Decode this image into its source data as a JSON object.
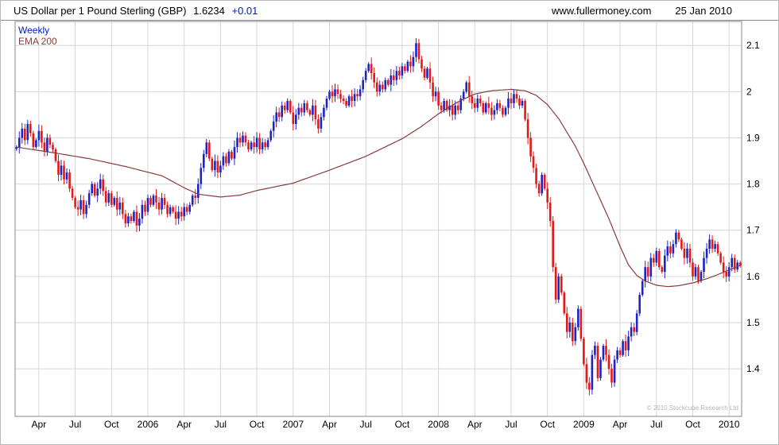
{
  "header": {
    "title": "US Dollar per 1 Pound Sterling (GBP)",
    "last_price": "1.6234",
    "change": "+0.01",
    "website": "www.fullermoney.com",
    "date": "25 Jan 2010"
  },
  "legend": {
    "timeframe": "Weekly",
    "ema": "EMA 200"
  },
  "footer": {
    "copyright": "© 2010 Stockcube Research Ltd"
  },
  "colors": {
    "up": "#1c24c8",
    "down": "#e41818",
    "ema": "#8b3a3a",
    "grid": "#d6d6d6",
    "axis": "#8a8a8a",
    "accent_blue": "#0018c8",
    "copyright_gray": "#b4b4b4"
  },
  "chart_data": {
    "type": "candlestick",
    "series_name": "US Dollar per 1 Pound Sterling (GBP)",
    "timeframe": "Weekly",
    "overlay": "EMA 200",
    "last_price": 1.6234,
    "change": 0.01,
    "ylim": [
      1.297,
      2.152
    ],
    "y_ticks": [
      "2.1",
      "2",
      "1.9",
      "1.8",
      "1.7",
      "1.6",
      "1.5",
      "1.4"
    ],
    "x_tick_labels": [
      "Apr",
      "Jul",
      "Oct",
      "2006",
      "Apr",
      "Jul",
      "Oct",
      "2007",
      "Apr",
      "Jul",
      "Oct",
      "2008",
      "Apr",
      "Jul",
      "Oct",
      "2009",
      "Apr",
      "Jul",
      "Oct",
      "2010"
    ],
    "x_tick_weeks": [
      8,
      21,
      34,
      47,
      60,
      73,
      86,
      99,
      112,
      125,
      138,
      151,
      164,
      177,
      190,
      203,
      216,
      229,
      242,
      255
    ],
    "weekly_closes": [
      1.88,
      1.9,
      1.92,
      1.895,
      1.93,
      1.91,
      1.88,
      1.895,
      1.915,
      1.89,
      1.87,
      1.9,
      1.885,
      1.875,
      1.85,
      1.82,
      1.84,
      1.81,
      1.825,
      1.79,
      1.77,
      1.75,
      1.745,
      1.765,
      1.735,
      1.755,
      1.78,
      1.8,
      1.775,
      1.79,
      1.81,
      1.785,
      1.76,
      1.78,
      1.755,
      1.77,
      1.745,
      1.76,
      1.735,
      1.715,
      1.73,
      1.72,
      1.74,
      1.71,
      1.725,
      1.755,
      1.74,
      1.77,
      1.755,
      1.775,
      1.76,
      1.745,
      1.77,
      1.755,
      1.735,
      1.75,
      1.74,
      1.725,
      1.74,
      1.73,
      1.75,
      1.74,
      1.755,
      1.775,
      1.77,
      1.8,
      1.835,
      1.865,
      1.89,
      1.855,
      1.83,
      1.85,
      1.825,
      1.84,
      1.86,
      1.845,
      1.87,
      1.855,
      1.88,
      1.9,
      1.89,
      1.905,
      1.89,
      1.875,
      1.89,
      1.88,
      1.9,
      1.875,
      1.89,
      1.88,
      1.895,
      1.915,
      1.935,
      1.955,
      1.945,
      1.97,
      1.96,
      1.98,
      1.955,
      1.93,
      1.95,
      1.965,
      1.955,
      1.975,
      1.96,
      1.95,
      1.97,
      1.94,
      1.92,
      1.945,
      1.965,
      1.985,
      2.0,
      1.99,
      2.005,
      1.995,
      1.985,
      1.98,
      1.97,
      1.99,
      1.98,
      1.995,
      1.99,
      2.005,
      2.025,
      2.045,
      2.06,
      2.04,
      2.02,
      2.0,
      2.015,
      2.005,
      2.025,
      2.015,
      2.035,
      2.025,
      2.045,
      2.035,
      2.055,
      2.045,
      2.065,
      2.055,
      2.075,
      2.105,
      2.07,
      2.05,
      2.03,
      2.05,
      2.02,
      1.99,
      2.0,
      1.97,
      1.96,
      1.98,
      1.96,
      1.97,
      1.95,
      1.97,
      1.96,
      1.985,
      2.0,
      2.02,
      1.99,
      1.975,
      1.965,
      1.985,
      1.975,
      1.955,
      1.975,
      1.965,
      1.95,
      1.96,
      1.975,
      1.965,
      1.95,
      1.965,
      1.985,
      1.975,
      1.995,
      1.985,
      1.97,
      1.98,
      1.94,
      1.9,
      1.86,
      1.835,
      1.8,
      1.78,
      1.82,
      1.79,
      1.76,
      1.72,
      1.62,
      1.55,
      1.6,
      1.565,
      1.52,
      1.48,
      1.5,
      1.46,
      1.49,
      1.53,
      1.465,
      1.41,
      1.37,
      1.355,
      1.43,
      1.45,
      1.38,
      1.42,
      1.45,
      1.43,
      1.4,
      1.37,
      1.42,
      1.44,
      1.43,
      1.46,
      1.44,
      1.47,
      1.49,
      1.48,
      1.52,
      1.56,
      1.59,
      1.62,
      1.6,
      1.64,
      1.63,
      1.655,
      1.62,
      1.61,
      1.645,
      1.665,
      1.65,
      1.67,
      1.695,
      1.68,
      1.66,
      1.64,
      1.66,
      1.63,
      1.6,
      1.62,
      1.59,
      1.61,
      1.64,
      1.66,
      1.68,
      1.66,
      1.67,
      1.65,
      1.63,
      1.61,
      1.6,
      1.62,
      1.64,
      1.615,
      1.63,
      1.623
    ],
    "ema200": {
      "weeks": [
        0,
        13,
        26,
        39,
        52,
        60,
        65,
        73,
        80,
        86,
        99,
        112,
        125,
        138,
        145,
        151,
        158,
        164,
        170,
        177,
        182,
        186,
        190,
        194,
        197,
        200,
        203,
        206,
        209,
        212,
        216,
        219,
        222,
        225,
        229,
        233,
        237,
        242,
        247,
        251,
        255,
        259
      ],
      "values": [
        1.88,
        1.868,
        1.855,
        1.838,
        1.818,
        1.792,
        1.778,
        1.772,
        1.776,
        1.786,
        1.802,
        1.83,
        1.86,
        1.898,
        1.925,
        1.952,
        1.978,
        1.995,
        2.002,
        2.005,
        2.002,
        1.992,
        1.972,
        1.942,
        1.912,
        1.882,
        1.845,
        1.805,
        1.765,
        1.725,
        1.665,
        1.625,
        1.602,
        1.59,
        1.581,
        1.578,
        1.58,
        1.586,
        1.595,
        1.604,
        1.614,
        1.624
      ]
    }
  }
}
